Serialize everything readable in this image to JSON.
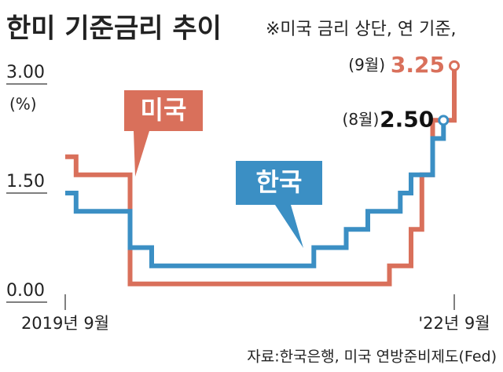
{
  "chart_data": {
    "type": "step",
    "title": "한미 기준금리 추이",
    "subtitle": "※미국 금리 상단, 연 기준,",
    "y_unit": "(%)",
    "source": "자료:한국은행, 미국 연방준비제도(Fed)",
    "xlim": [
      "2019-09",
      "2022-09"
    ],
    "xticks": [
      {
        "value": "2019-09",
        "label": "2019년 9월"
      },
      {
        "value": "2022-09",
        "label": "'22년 9월"
      }
    ],
    "ylim": [
      0,
      3
    ],
    "yticks": [
      {
        "value": 3,
        "label": "3.00"
      },
      {
        "value": 1.5,
        "label": "1.50"
      },
      {
        "value": 0,
        "label": "0.00"
      }
    ],
    "series": [
      {
        "name": "미국",
        "color": "#d9705b",
        "x": [
          "2019-09",
          "2019-10",
          "2020-03",
          "2022-03",
          "2022-05",
          "2022-06",
          "2022-07",
          "2022-09"
        ],
        "values": [
          2.0,
          1.75,
          0.25,
          0.5,
          1.0,
          1.75,
          2.5,
          3.25
        ],
        "value_labels": [
          null,
          null,
          null,
          null,
          null,
          null,
          null,
          "3.25"
        ],
        "end_note": "(9월)"
      },
      {
        "name": "한국",
        "color": "#3b8fc4",
        "x": [
          "2019-09",
          "2019-10",
          "2020-03",
          "2020-05",
          "2021-08",
          "2021-11",
          "2022-01",
          "2022-04",
          "2022-05",
          "2022-07",
          "2022-08"
        ],
        "values": [
          1.5,
          1.25,
          0.75,
          0.5,
          0.75,
          1.0,
          1.25,
          1.5,
          1.75,
          2.25,
          2.5
        ],
        "value_labels": [
          null,
          null,
          null,
          null,
          null,
          null,
          null,
          null,
          null,
          null,
          "2.50"
        ],
        "end_note": "(8월)"
      }
    ]
  }
}
